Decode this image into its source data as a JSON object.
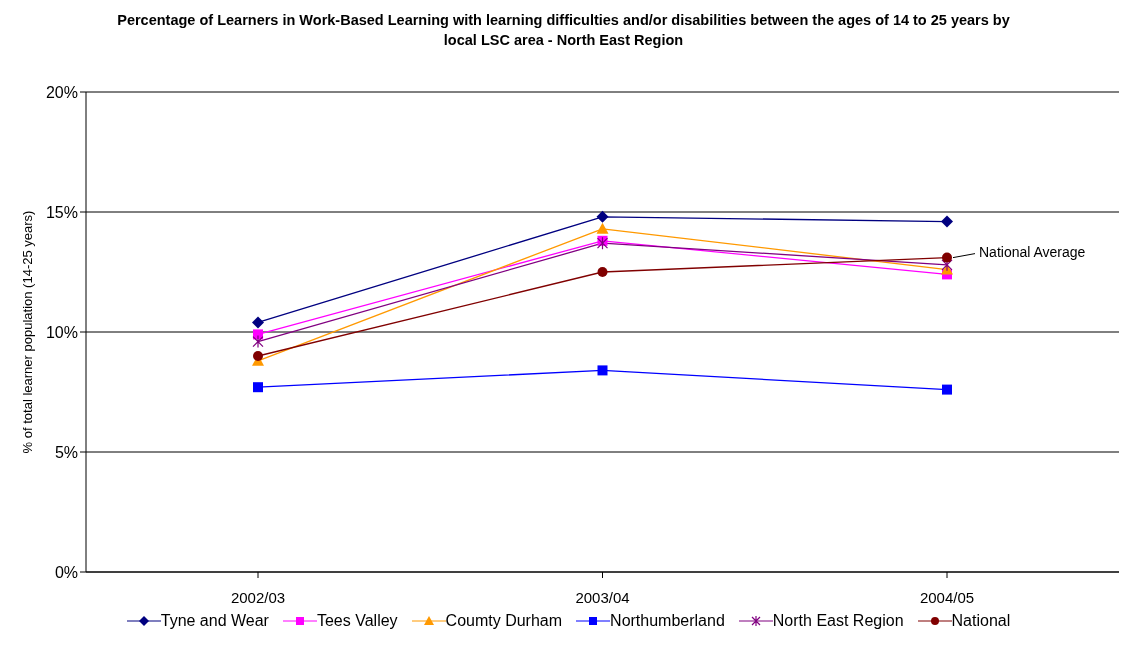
{
  "chart_data": {
    "type": "line",
    "title": "Percentage of Learners in Work-Based Learning with learning difficulties and/or disabilities between the ages of 14 to 25 years by local LSC area - North East Region",
    "ylabel": "% of total learner population (14-25 years)",
    "categories": [
      "2002/03",
      "2003/04",
      "2004/05"
    ],
    "series": [
      {
        "name": "Tyne and Wear",
        "color": "#000080",
        "marker": "diamond",
        "values": [
          10.4,
          14.8,
          14.6
        ]
      },
      {
        "name": "Tees Valley",
        "color": "#ff00ff",
        "marker": "square",
        "values": [
          9.9,
          13.8,
          12.4
        ]
      },
      {
        "name": "Coumty Durham",
        "color": "#ff9900",
        "marker": "triangle",
        "values": [
          8.8,
          14.3,
          12.6
        ]
      },
      {
        "name": "Northumberland",
        "color": "#0000ff",
        "marker": "square",
        "values": [
          7.7,
          8.4,
          7.6
        ]
      },
      {
        "name": "North East Region",
        "color": "#800080",
        "marker": "cross",
        "values": [
          9.6,
          13.7,
          12.8
        ]
      },
      {
        "name": "National",
        "color": "#800000",
        "marker": "circle",
        "values": [
          9.0,
          12.5,
          13.1
        ]
      }
    ],
    "ylim": [
      0,
      20
    ],
    "yticks": [
      {
        "value": 0,
        "label": "0%"
      },
      {
        "value": 5,
        "label": "5%"
      },
      {
        "value": 10,
        "label": "10%"
      },
      {
        "value": 15,
        "label": "15%"
      },
      {
        "value": 20,
        "label": "20%"
      }
    ],
    "grid": "y",
    "legend": "bottom",
    "line_style": "solid",
    "annotations": [
      {
        "text": "National Average",
        "x": "2004/05",
        "y": 13.1
      }
    ]
  }
}
